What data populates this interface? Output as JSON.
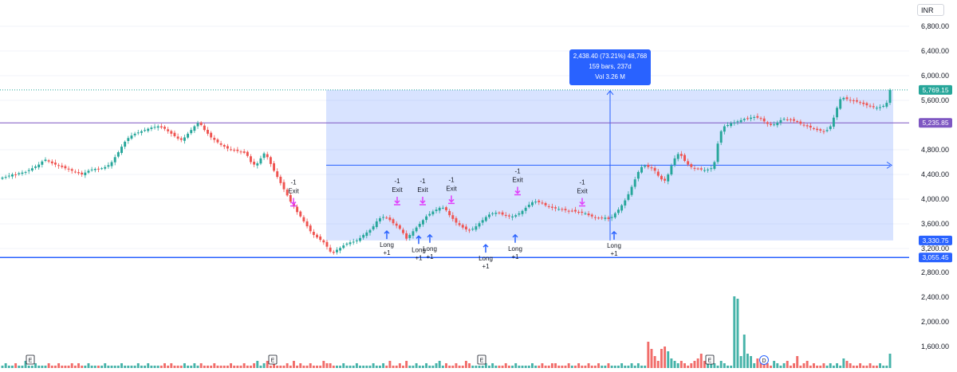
{
  "currency": "INR",
  "colors": {
    "up": "#26a69a",
    "down": "#ef5350",
    "volume_up": "#26a69a",
    "volume_down": "#ef5350",
    "range_fill": "#2962ff",
    "measure": "#2962ff",
    "resistance_line": "#7e57c2",
    "support_line": "#2962ff",
    "long_arrow": "#2962ff",
    "exit_arrow": "#e040fb",
    "last_price": "#26a69a",
    "level_upper_tag": "#7e57c2",
    "level_lower_tag": "#2962ff"
  },
  "measure_tooltip": {
    "line1": "2,438.40 (73.21%) 48,768",
    "line2": "159 bars, 237d",
    "line3": "Vol 3.26 M"
  },
  "price_tags": {
    "last": "5,769.15",
    "upper_level": "5,235.85",
    "range_low": "3,330.75",
    "support": "3,055.45"
  },
  "event_markers": [
    "E",
    "E",
    "E",
    "E",
    "D"
  ],
  "chart_data": {
    "type": "candlestick",
    "price_axis": {
      "ticks": [
        "6,800.00",
        "6,400.00",
        "6,000.00",
        "5,600.00",
        "4,800.00",
        "4,400.00",
        "4,000.00",
        "3,600.00",
        "3,200.00"
      ],
      "tick_values": [
        6800,
        6400,
        6000,
        5600,
        4800,
        4400,
        4000,
        3600,
        3200
      ],
      "range": [
        3000,
        7000
      ]
    },
    "volume_axis": {
      "ticks": [
        "2,800.00",
        "2,400.00",
        "2,000.00",
        "1,600.00"
      ],
      "tick_values": [
        2800,
        2400,
        2000,
        1600
      ]
    },
    "levels": [
      {
        "price": 5235.85,
        "type": "resistance"
      },
      {
        "price": 3055.45,
        "type": "support"
      }
    ],
    "last_price": 5769.15,
    "measure_range": {
      "low": 3330.75,
      "high": 5769.15,
      "change": 2438.4,
      "percent": 73.21,
      "bars": 159,
      "days": 237
    },
    "signals": [
      {
        "kind": "exit",
        "count": "-1",
        "label": "Exit",
        "price": 3800
      },
      {
        "kind": "long",
        "count": "+1",
        "label": "Long",
        "price": 3560
      },
      {
        "kind": "exit",
        "count": "-1",
        "label": "Exit",
        "price": 3820
      },
      {
        "kind": "long",
        "count": "+1",
        "label": "Long",
        "price": 3480
      },
      {
        "kind": "exit",
        "count": "-1",
        "label": "Exit",
        "price": 3820
      },
      {
        "kind": "long",
        "count": "+1",
        "label": "Long",
        "price": 3500
      },
      {
        "kind": "exit",
        "count": "-1",
        "label": "Exit",
        "price": 3840
      },
      {
        "kind": "long",
        "count": "+1",
        "label": "Long",
        "price": 3340
      },
      {
        "kind": "long",
        "count": "+1",
        "label": "Long",
        "price": 3500
      },
      {
        "kind": "exit",
        "count": "-1",
        "label": "Exit",
        "price": 3980
      },
      {
        "kind": "exit",
        "count": "-1",
        "label": "Exit",
        "price": 3800
      },
      {
        "kind": "long",
        "count": "+1",
        "label": "Long",
        "price": 3550
      }
    ],
    "closes": [
      4350,
      4360,
      4380,
      4400,
      4390,
      4420,
      4430,
      4440,
      4470,
      4500,
      4530,
      4560,
      4610,
      4640,
      4610,
      4580,
      4560,
      4540,
      4520,
      4500,
      4480,
      4460,
      4440,
      4420,
      4400,
      4430,
      4460,
      4480,
      4490,
      4480,
      4500,
      4520,
      4550,
      4600,
      4680,
      4760,
      4850,
      4930,
      4990,
      5030,
      5060,
      5080,
      5100,
      5120,
      5140,
      5160,
      5170,
      5180,
      5160,
      5140,
      5100,
      5060,
      5020,
      4980,
      4960,
      5000,
      5060,
      5120,
      5180,
      5230,
      5200,
      5120,
      5060,
      5000,
      4960,
      4920,
      4880,
      4850,
      4820,
      4800,
      4790,
      4780,
      4770,
      4750,
      4700,
      4600,
      4560,
      4580,
      4660,
      4740,
      4680,
      4570,
      4460,
      4360,
      4260,
      4160,
      4060,
      3960,
      3880,
      3790,
      3720,
      3640,
      3560,
      3480,
      3420,
      3380,
      3340,
      3300,
      3230,
      3150,
      3130,
      3180,
      3210,
      3250,
      3280,
      3300,
      3310,
      3330,
      3370,
      3420,
      3460,
      3500,
      3560,
      3640,
      3690,
      3710,
      3700,
      3660,
      3610,
      3570,
      3520,
      3450,
      3360,
      3420,
      3480,
      3540,
      3600,
      3660,
      3720,
      3760,
      3800,
      3830,
      3860,
      3860,
      3820,
      3740,
      3680,
      3620,
      3580,
      3540,
      3510,
      3500,
      3520,
      3560,
      3610,
      3660,
      3710,
      3750,
      3770,
      3780,
      3770,
      3750,
      3730,
      3720,
      3720,
      3740,
      3770,
      3810,
      3860,
      3910,
      3950,
      3960,
      3950,
      3930,
      3900,
      3880,
      3860,
      3850,
      3840,
      3830,
      3820,
      3810,
      3810,
      3800,
      3790,
      3780,
      3770,
      3740,
      3720,
      3700,
      3690,
      3690,
      3700,
      3680,
      3710,
      3770,
      3830,
      3900,
      3980,
      4080,
      4200,
      4320,
      4440,
      4520,
      4540,
      4520,
      4500,
      4460,
      4380,
      4320,
      4300,
      4400,
      4540,
      4660,
      4730,
      4700,
      4620,
      4560,
      4520,
      4500,
      4490,
      4480,
      4470,
      4480,
      4500,
      4600,
      4900,
      5100,
      5180,
      5200,
      5230,
      5240,
      5260,
      5280,
      5300,
      5310,
      5320,
      5330,
      5320,
      5300,
      5260,
      5220,
      5200,
      5210,
      5240,
      5280,
      5300,
      5290,
      5280,
      5270,
      5250,
      5220,
      5200,
      5180,
      5160,
      5140,
      5120,
      5110,
      5100,
      5120,
      5180,
      5320,
      5480,
      5620,
      5640,
      5620,
      5600,
      5590,
      5580,
      5560,
      5540,
      5520,
      5500,
      5490,
      5480,
      5490,
      5510,
      5560,
      5769.15
    ],
    "volume_scale_note": "relative bar heights",
    "volumes": [
      1,
      2,
      1,
      1,
      2,
      1,
      1,
      3,
      1,
      1,
      2,
      1,
      1,
      1,
      2,
      1,
      1,
      2,
      1,
      1,
      1,
      2,
      1,
      2,
      1,
      1,
      2,
      1,
      1,
      1,
      1,
      2,
      1,
      1,
      1,
      1,
      2,
      1,
      1,
      1,
      1,
      2,
      1,
      1,
      2,
      1,
      1,
      1,
      1,
      2,
      1,
      2,
      1,
      1,
      1,
      2,
      1,
      1,
      2,
      1,
      2,
      1,
      1,
      1,
      2,
      1,
      1,
      1,
      1,
      2,
      1,
      1,
      1,
      2,
      1,
      1,
      2,
      3,
      1,
      2,
      3,
      1,
      2,
      1,
      1,
      1,
      2,
      1,
      3,
      1,
      2,
      1,
      1,
      2,
      1,
      1,
      1,
      3,
      2,
      2,
      1,
      1,
      1,
      2,
      1,
      1,
      1,
      2,
      1,
      1,
      1,
      1,
      2,
      1,
      1,
      2,
      1,
      3,
      1,
      1,
      2,
      1,
      3,
      1,
      1,
      2,
      1,
      1,
      2,
      1,
      1,
      2,
      3,
      1,
      2,
      1,
      1,
      2,
      1,
      1,
      3,
      2,
      1,
      1,
      1,
      1,
      2,
      1,
      2,
      1,
      1,
      1,
      2,
      1,
      1,
      2,
      1,
      1,
      1,
      1,
      2,
      1,
      1,
      2,
      1,
      1,
      2,
      2,
      1,
      1,
      1,
      2,
      1,
      1,
      2,
      1,
      1,
      2,
      1,
      1,
      2,
      1,
      1,
      2,
      1,
      1,
      1,
      2,
      1,
      1,
      2,
      1,
      2,
      1,
      1,
      11,
      8,
      5,
      3,
      8,
      9,
      7,
      4,
      3,
      2,
      3,
      2,
      1,
      2,
      3,
      4,
      6,
      3,
      4,
      5,
      2,
      1,
      3,
      2,
      1,
      1,
      30,
      29,
      5,
      14,
      6,
      5,
      2,
      4,
      3,
      5,
      2,
      1,
      3,
      2,
      1,
      2,
      3,
      1,
      2,
      5,
      1,
      2,
      3,
      1,
      2,
      1,
      1,
      2,
      1,
      2,
      1,
      2,
      1,
      4,
      3,
      2,
      1,
      1,
      2,
      1,
      1,
      2,
      1,
      1,
      2,
      1,
      1,
      6
    ]
  }
}
